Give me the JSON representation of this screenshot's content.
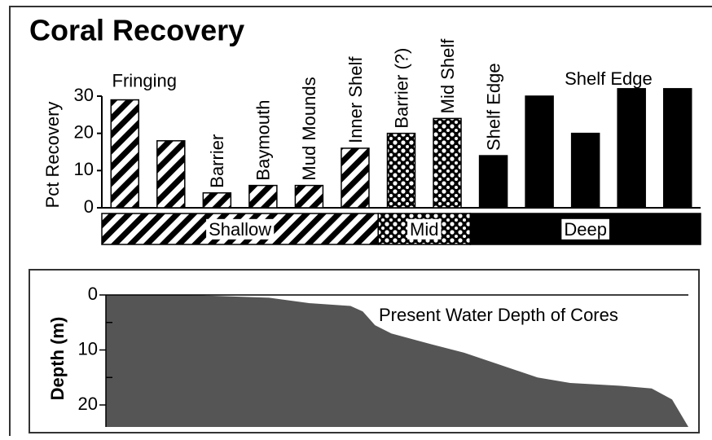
{
  "chart_data": [
    {
      "type": "bar",
      "title": "Coral Recovery",
      "y_label": "Pct Recovery",
      "categories": [
        "Fringing",
        null,
        "Barrier",
        "Baymouth",
        "Mud Mounds",
        "Inner Shelf",
        "Barrier (?)",
        "Mid Shelf",
        "Shelf Edge",
        null,
        null,
        null,
        null
      ],
      "values": [
        29,
        18,
        4,
        6,
        6,
        16,
        20,
        24,
        14,
        30,
        20,
        32,
        32
      ],
      "zones": [
        {
          "name": "Shallow",
          "pattern": "hatch",
          "size": 6
        },
        {
          "name": "Mid",
          "pattern": "dots",
          "size": 2
        },
        {
          "name": "Deep",
          "pattern": "solid",
          "size": 5
        }
      ],
      "annotation": "Shelf Edge",
      "ylim": [
        0,
        37
      ],
      "yticks": [
        0,
        10,
        20,
        30
      ]
    },
    {
      "type": "area",
      "y_label": "Depth (m)",
      "annotation": "Present Water Depth of Cores",
      "color": "#555555",
      "x": [
        0,
        16.8,
        28,
        35,
        42,
        44.1,
        46.2,
        49,
        56,
        61.5,
        67.1,
        74.1,
        79.7,
        88.1,
        93.7,
        97.2,
        100
      ],
      "values": [
        0,
        0.1,
        0.5,
        1.5,
        2,
        3,
        5.5,
        7,
        9,
        10.5,
        12.5,
        15,
        16,
        16.5,
        17,
        19,
        24
      ],
      "xlim": [
        0,
        100
      ],
      "ylim": [
        0,
        24
      ],
      "inverted": true,
      "yticks": [
        0,
        10,
        20
      ],
      "minor_yticks": [
        5,
        15
      ]
    }
  ]
}
